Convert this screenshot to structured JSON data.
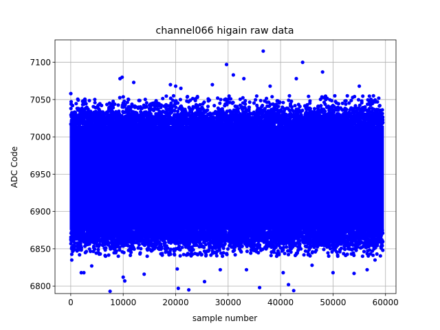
{
  "chart_data": {
    "type": "scatter",
    "title": "channel066 higain raw data",
    "xlabel": "sample number",
    "ylabel": "ADC Code",
    "xlim": [
      -3000,
      62000
    ],
    "ylim": [
      6790,
      7130
    ],
    "xticks": [
      0,
      10000,
      20000,
      30000,
      40000,
      50000,
      60000
    ],
    "yticks": [
      6800,
      6850,
      6900,
      6950,
      7000,
      7050,
      7100
    ],
    "grid": true,
    "marker_color": "#0000ff",
    "n_samples": 60000,
    "x_range": [
      0,
      59500
    ],
    "core_band": [
      6875,
      7015
    ],
    "dense_band": [
      6862,
      7025
    ],
    "typical_min": 6840,
    "typical_max": 7055,
    "outliers": [
      {
        "x": 16,
        "y": 7058
      },
      {
        "x": 200,
        "y": 6835
      },
      {
        "x": 2000,
        "y": 6818
      },
      {
        "x": 2500,
        "y": 6818
      },
      {
        "x": 4000,
        "y": 6827
      },
      {
        "x": 7500,
        "y": 6793
      },
      {
        "x": 9400,
        "y": 7078
      },
      {
        "x": 9800,
        "y": 7080
      },
      {
        "x": 10000,
        "y": 6812
      },
      {
        "x": 10300,
        "y": 6807
      },
      {
        "x": 12000,
        "y": 7073
      },
      {
        "x": 14000,
        "y": 6816
      },
      {
        "x": 19000,
        "y": 7070
      },
      {
        "x": 20000,
        "y": 7068
      },
      {
        "x": 20300,
        "y": 6823
      },
      {
        "x": 20500,
        "y": 6797
      },
      {
        "x": 21000,
        "y": 7065
      },
      {
        "x": 22500,
        "y": 6795
      },
      {
        "x": 25500,
        "y": 6806
      },
      {
        "x": 27000,
        "y": 7070
      },
      {
        "x": 28500,
        "y": 6822
      },
      {
        "x": 29700,
        "y": 7097
      },
      {
        "x": 31000,
        "y": 7083
      },
      {
        "x": 33000,
        "y": 7078
      },
      {
        "x": 33500,
        "y": 6822
      },
      {
        "x": 36000,
        "y": 6798
      },
      {
        "x": 36700,
        "y": 7115
      },
      {
        "x": 38000,
        "y": 7068
      },
      {
        "x": 40500,
        "y": 6818
      },
      {
        "x": 41500,
        "y": 6802
      },
      {
        "x": 42500,
        "y": 6794
      },
      {
        "x": 43000,
        "y": 7078
      },
      {
        "x": 44200,
        "y": 7100
      },
      {
        "x": 46000,
        "y": 6828
      },
      {
        "x": 48000,
        "y": 7087
      },
      {
        "x": 50000,
        "y": 6818
      },
      {
        "x": 54000,
        "y": 6817
      },
      {
        "x": 55000,
        "y": 7068
      },
      {
        "x": 56500,
        "y": 6822
      },
      {
        "x": 58000,
        "y": 6835
      }
    ]
  }
}
